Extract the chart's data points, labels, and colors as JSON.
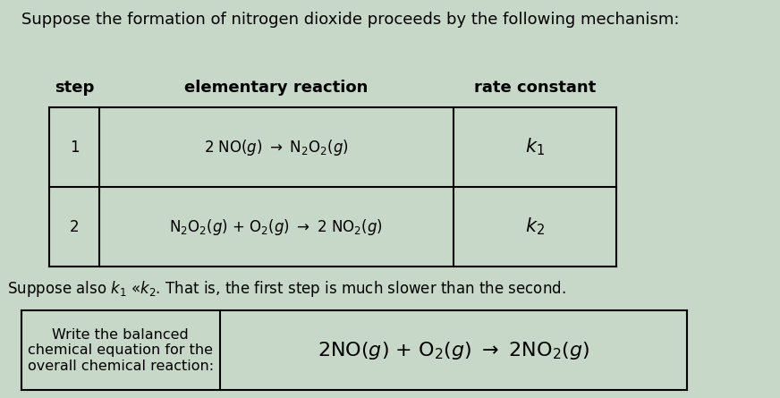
{
  "title_text": "Suppose the formation of nitrogen dioxide proceeds by the following mechanism:",
  "bg_color": "#c8d8c8",
  "header_step": "step",
  "header_reaction": "elementary reaction",
  "header_rate": "rate constant",
  "row1_step": "1",
  "row2_step": "2",
  "suppose_text": "Suppose also $k_1$ «k_2. That is, the first step is much slower than the second.",
  "question_label": "Write the balanced\nchemical equation for the\noverall chemical reaction:",
  "font_size_title": 13,
  "font_size_body": 12,
  "font_size_answer": 16
}
